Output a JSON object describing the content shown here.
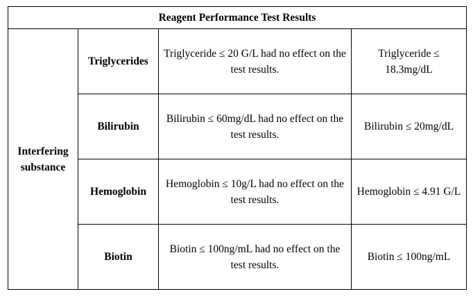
{
  "table": {
    "title": "Reagent Performance Test Results",
    "group_label": "Interfering substance",
    "rows": [
      {
        "substance": "Triglycerides",
        "statement": "Triglyceride ≤ 20 G/L had no effect on the test results.",
        "limit": "Triglyceride ≤ 18.3mg/dL"
      },
      {
        "substance": "Bilirubin",
        "statement": "Bilirubin ≤ 60mg/dL had no effect on the test results.",
        "limit": "Bilirubin ≤ 20mg/dL"
      },
      {
        "substance": "Hemoglobin",
        "statement": "Hemoglobin ≤ 10g/L had no effect on the test results.",
        "limit": "Hemoglobin ≤ 4.91 G/L"
      },
      {
        "substance": "Biotin",
        "statement": "Biotin ≤ 100ng/mL had no effect on the test results.",
        "limit": "Biotin ≤ 100ng/mL"
      }
    ]
  }
}
